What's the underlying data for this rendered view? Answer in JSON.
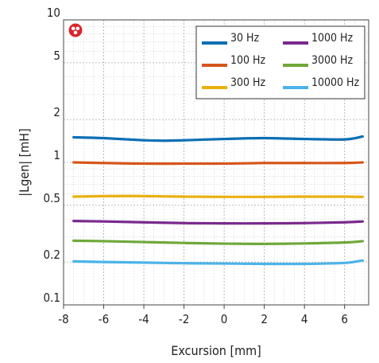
{
  "chart_data": {
    "type": "line",
    "xlabel": "Excursion [mm]",
    "ylabel": "|Lgen| [mH]",
    "xlim": [
      -8,
      7.2
    ],
    "ylim": [
      0.1,
      10
    ],
    "yscale": "log",
    "x_ticks": [
      -8,
      -6,
      -4,
      -2,
      0,
      2,
      4,
      6
    ],
    "x_tick_labels": [
      "-8",
      "-6",
      "-4",
      "-2",
      "0",
      "2",
      "4",
      "6"
    ],
    "y_ticks": [
      0.1,
      0.2,
      0.5,
      1,
      2,
      5,
      10
    ],
    "y_tick_labels": [
      "0.1",
      "0.2",
      "0.5",
      "1",
      "2",
      "5",
      "10"
    ],
    "grid": true,
    "legend_position": "top-right",
    "series": [
      {
        "name": "30 Hz",
        "color": "#0a6fb4",
        "x": [
          -7.5,
          -6,
          -4,
          -3,
          -2,
          0,
          2,
          4,
          6,
          6.9
        ],
        "y": [
          1.5,
          1.48,
          1.43,
          1.42,
          1.43,
          1.46,
          1.48,
          1.46,
          1.45,
          1.52
        ]
      },
      {
        "name": "100 Hz",
        "color": "#d6561b",
        "x": [
          -7.5,
          -6,
          -4,
          -2,
          0,
          2,
          4,
          6,
          6.9
        ],
        "y": [
          1.0,
          0.99,
          0.98,
          0.98,
          0.98,
          0.99,
          0.99,
          0.99,
          1.0
        ]
      },
      {
        "name": "300 Hz",
        "color": "#eab010",
        "x": [
          -7.5,
          -6,
          -4,
          -2,
          0,
          2,
          4,
          6,
          6.9
        ],
        "y": [
          0.575,
          0.58,
          0.58,
          0.575,
          0.573,
          0.573,
          0.575,
          0.575,
          0.573
        ]
      },
      {
        "name": "1000 Hz",
        "color": "#7a2a8e",
        "x": [
          -7.5,
          -6,
          -4,
          -2,
          0,
          2,
          4,
          6,
          6.9
        ],
        "y": [
          0.388,
          0.385,
          0.38,
          0.375,
          0.373,
          0.373,
          0.375,
          0.38,
          0.385
        ]
      },
      {
        "name": "3000 Hz",
        "color": "#6fa83a",
        "x": [
          -7.5,
          -6,
          -4,
          -2,
          0,
          2,
          4,
          6,
          6.9
        ],
        "y": [
          0.282,
          0.28,
          0.276,
          0.272,
          0.269,
          0.268,
          0.27,
          0.274,
          0.28
        ]
      },
      {
        "name": "10000 Hz",
        "color": "#4cb3e8",
        "x": [
          -7.5,
          -6,
          -4,
          -2,
          0,
          2,
          4,
          6,
          6.9
        ],
        "y": [
          0.202,
          0.2,
          0.198,
          0.196,
          0.195,
          0.194,
          0.194,
          0.197,
          0.205
        ]
      }
    ]
  },
  "logo": {
    "color": "#d9252b",
    "icon": "speaker-logo-icon"
  }
}
